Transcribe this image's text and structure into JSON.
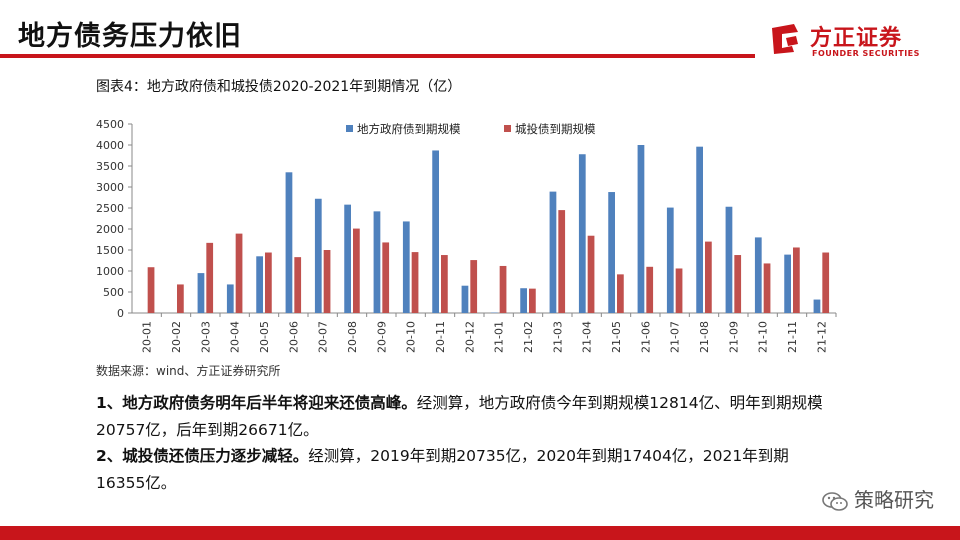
{
  "header": {
    "title": "地方债务压力依旧",
    "logo_cn": "方正证券",
    "logo_en": "FOUNDER SECURITIES"
  },
  "figure": {
    "title": "图表4：地方政府债和城投债2020-2021年到期情况（亿）",
    "source": "数据来源：wind、方正证券研究所"
  },
  "colors": {
    "accent": "#c8151b",
    "series_blue": "#4f81bd",
    "series_red": "#c0504d"
  },
  "chart_data": {
    "type": "bar",
    "categories": [
      "20-01",
      "20-02",
      "20-03",
      "20-04",
      "20-05",
      "20-06",
      "20-07",
      "20-08",
      "20-09",
      "20-10",
      "20-11",
      "20-12",
      "21-01",
      "21-02",
      "21-03",
      "21-04",
      "21-05",
      "21-06",
      "21-07",
      "21-08",
      "21-09",
      "21-10",
      "21-11",
      "21-12"
    ],
    "series": [
      {
        "name": "地方政府债到期规模",
        "color": "#4f81bd",
        "values": [
          0,
          0,
          950,
          680,
          1350,
          3350,
          2720,
          2580,
          2420,
          2180,
          3870,
          650,
          10,
          590,
          2890,
          3780,
          2880,
          4000,
          2510,
          3960,
          2530,
          1800,
          1390,
          320
        ]
      },
      {
        "name": "城投债到期规模",
        "color": "#c0504d",
        "values": [
          1090,
          680,
          1670,
          1890,
          1440,
          1330,
          1500,
          2010,
          1680,
          1450,
          1380,
          1260,
          1120,
          580,
          2450,
          1840,
          920,
          1100,
          1060,
          1700,
          1380,
          1180,
          1560,
          1440
        ]
      }
    ],
    "yticks": [
      "0",
      "500",
      "1000",
      "1500",
      "2000",
      "2500",
      "3000",
      "3500",
      "4000",
      "4500"
    ],
    "ylim": [
      0,
      4500
    ],
    "legend": "top-center",
    "grid": false
  },
  "text": {
    "p1_bold": "1、地方政府债务明年后半年将迎来还债高峰。",
    "p1_rest": "经测算，地方政府债今年到期规模12814亿、明年到期规模20757亿，后年到期26671亿。",
    "p2_bold": "2、城投债还债压力逐步减轻。",
    "p2_rest": "经测算，2019年到期20735亿，2020年到期17404亿，2021年到期16355亿。"
  },
  "watermark": {
    "label": "策略研究",
    "icon": "wechat-icon"
  }
}
